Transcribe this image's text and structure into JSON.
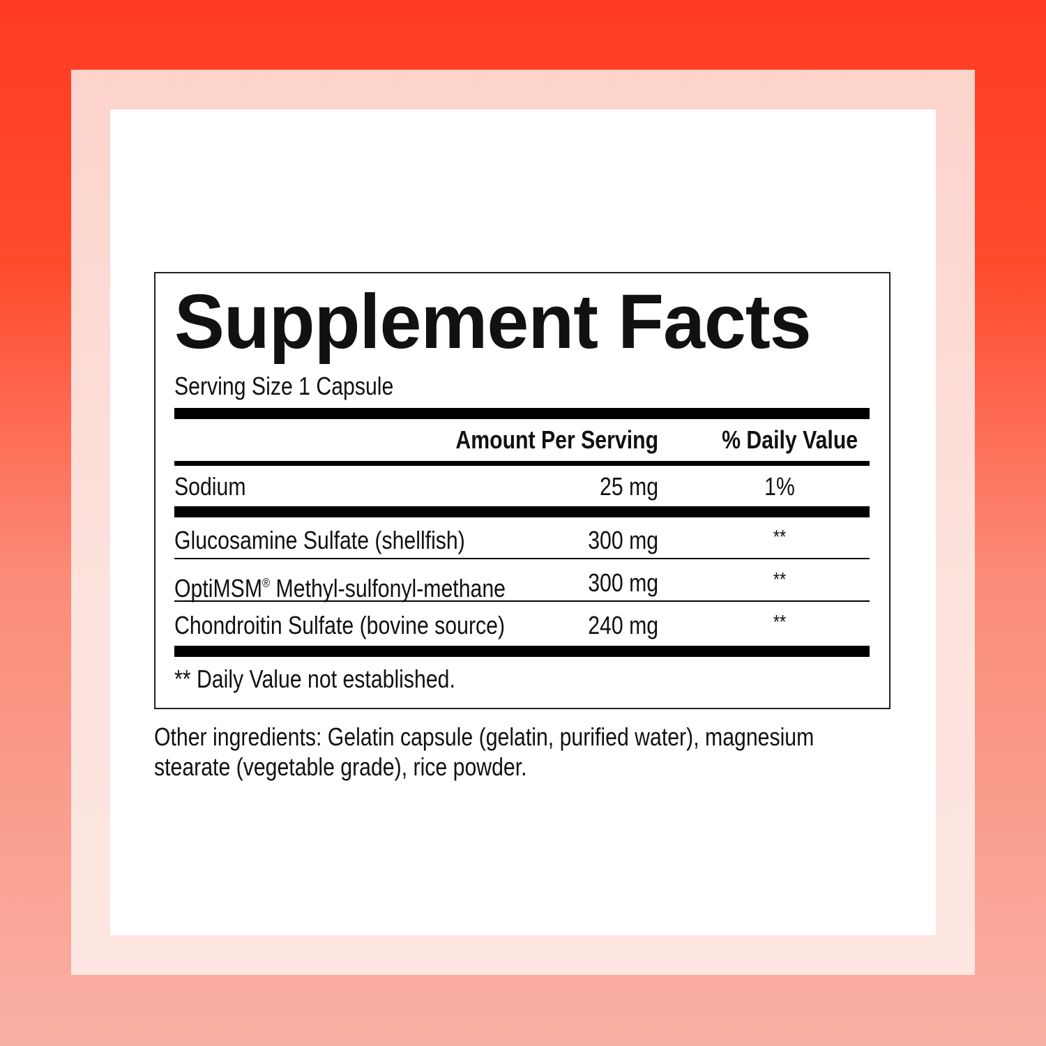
{
  "title": "Supplement Facts",
  "serving_size": "Serving Size 1 Capsule",
  "headers": {
    "amount": "Amount Per Serving",
    "daily_value": "% Daily Value"
  },
  "rows": [
    {
      "name": "Sodium",
      "amount": "25 mg",
      "dv": "1%"
    },
    {
      "name": "Glucosamine Sulfate (shellfish)",
      "amount": "300 mg",
      "dv": "**"
    },
    {
      "name": "OptiMSM",
      "mark": "®",
      "name_rest": " Methyl-sulfonyl-methane",
      "amount": "300 mg",
      "dv": "**"
    },
    {
      "name": "Chondroitin Sulfate (bovine source)",
      "amount": "240 mg",
      "dv": "**"
    }
  ],
  "footnote": "** Daily Value not established.",
  "other_ingredients": {
    "line1": "Other ingredients: Gelatin capsule (gelatin, purified water), magnesium",
    "line2": "stearate (vegetable grade), rice powder."
  }
}
